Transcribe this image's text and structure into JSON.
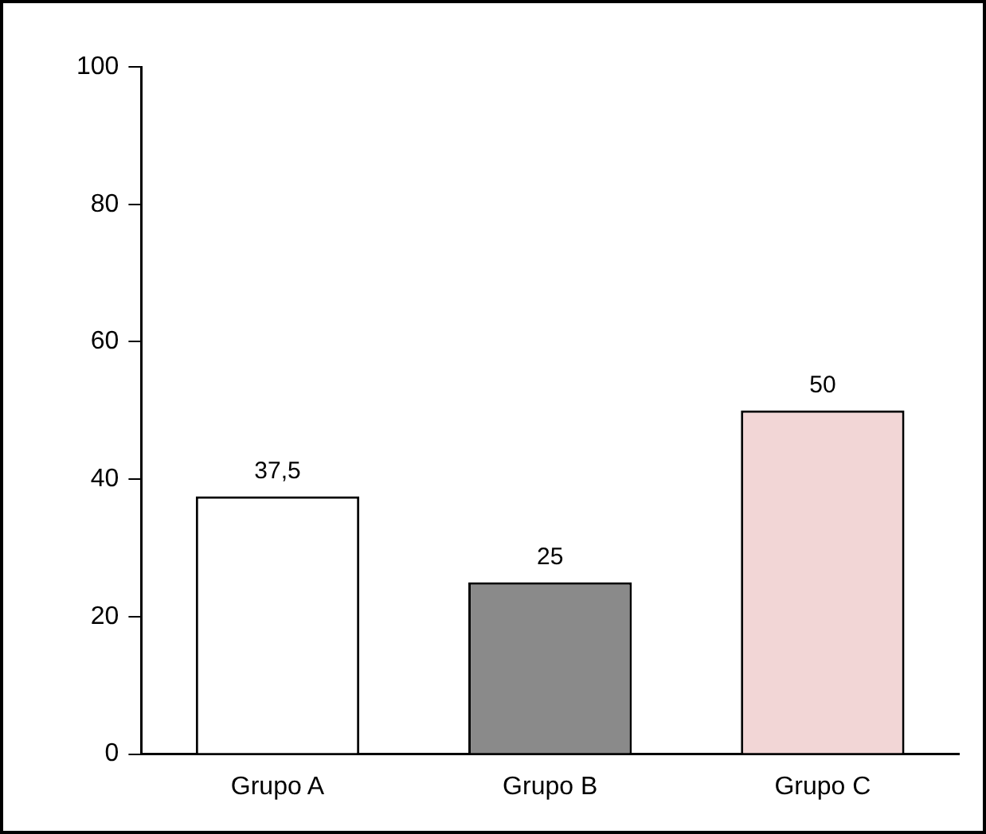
{
  "chart_data": {
    "type": "bar",
    "categories": [
      "Grupo A",
      "Grupo B",
      "Grupo C"
    ],
    "values": [
      37.5,
      25,
      50
    ],
    "colors": [
      "#ffffff",
      "#8a8a8a",
      "#f2d6d6"
    ],
    "value_labels": [
      "37,5",
      "25",
      "50"
    ],
    "ylim": [
      0,
      100
    ],
    "yticks": [
      0,
      20,
      40,
      60,
      80,
      100
    ],
    "grid": false,
    "legend": false
  }
}
